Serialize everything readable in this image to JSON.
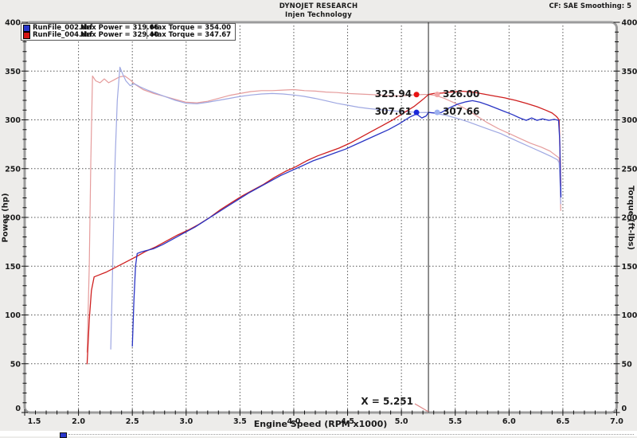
{
  "header": {
    "title": "DYNOJET RESEARCH",
    "subtitle": "Injen Technology",
    "correction": "CF: SAE  Smoothing: 5"
  },
  "legend": {
    "runs": [
      {
        "file": "RunFile_002.drf",
        "power": "Max Power = 319.66",
        "torque": "Max Torque = 354.00",
        "color": "#2836cc"
      },
      {
        "file": "RunFile_004.drf",
        "power": "Max Power = 329.40",
        "torque": "Max Torque = 347.67",
        "color": "#d41414"
      }
    ]
  },
  "cursor": {
    "x": 5.251,
    "label": "X = 5.251",
    "pointer_color": "#dd8a8a",
    "readouts": [
      {
        "label": "325.94",
        "value": 325.94,
        "dot": "#e81212",
        "placement": "left"
      },
      {
        "label": "326.00",
        "value": 326.0,
        "dot": "#f2a7a7",
        "placement": "right"
      },
      {
        "label": "307.61",
        "value": 307.61,
        "dot": "#1a28d8",
        "placement": "left"
      },
      {
        "label": "307.66",
        "value": 307.66,
        "dot": "#9db1ef",
        "placement": "right"
      }
    ]
  },
  "chart_data": {
    "type": "line",
    "title": "DYNOJET RESEARCH",
    "subtitle": "Injen Technology",
    "xlabel": "Engine Speed (RPM x1000)",
    "ylabel_left": "Power (hp)",
    "ylabel_right": "Torque (ft-lbs)",
    "x_range": [
      1.5,
      7.0
    ],
    "y_range": [
      0,
      400
    ],
    "x_tick_labels": [
      "1.5",
      "2.0",
      "2.5",
      "3.0",
      "3.5",
      "4.0",
      "4.5",
      "5.0",
      "5.5",
      "6.0",
      "6.5",
      "7.0"
    ],
    "y_tick_labels": [
      "0",
      "50",
      "100",
      "150",
      "200",
      "250",
      "300",
      "350",
      "400"
    ],
    "x_minor_step": 0.1,
    "y_minor_step": 10,
    "grid": true,
    "legend_position": "top-left",
    "series": [
      {
        "name": "RunFile_004.drf Torque",
        "unit": "ft-lbs",
        "color": "#e59c9c",
        "width": 1.2,
        "points": [
          [
            2.08,
            62
          ],
          [
            2.1,
            150
          ],
          [
            2.115,
            260
          ],
          [
            2.13,
            345
          ],
          [
            2.16,
            340
          ],
          [
            2.2,
            338
          ],
          [
            2.24,
            342
          ],
          [
            2.28,
            338
          ],
          [
            2.33,
            341
          ],
          [
            2.38,
            344
          ],
          [
            2.43,
            345
          ],
          [
            2.48,
            341
          ],
          [
            2.53,
            336
          ],
          [
            2.6,
            331
          ],
          [
            2.7,
            327
          ],
          [
            2.8,
            324
          ],
          [
            2.9,
            321
          ],
          [
            3.0,
            318
          ],
          [
            3.1,
            317.5
          ],
          [
            3.2,
            319
          ],
          [
            3.3,
            322
          ],
          [
            3.4,
            325
          ],
          [
            3.5,
            327
          ],
          [
            3.6,
            329
          ],
          [
            3.7,
            330
          ],
          [
            3.8,
            330
          ],
          [
            3.9,
            330.5
          ],
          [
            4.0,
            331
          ],
          [
            4.1,
            330
          ],
          [
            4.2,
            329.5
          ],
          [
            4.3,
            328.5
          ],
          [
            4.4,
            328
          ],
          [
            4.5,
            327
          ],
          [
            4.6,
            326.5
          ],
          [
            4.7,
            326
          ],
          [
            4.8,
            325.5
          ],
          [
            4.9,
            324.5
          ],
          [
            5.0,
            324.5
          ],
          [
            5.1,
            325.5
          ],
          [
            5.2,
            326
          ],
          [
            5.251,
            326
          ],
          [
            5.32,
            325
          ],
          [
            5.4,
            322
          ],
          [
            5.5,
            317
          ],
          [
            5.6,
            311
          ],
          [
            5.7,
            304
          ],
          [
            5.8,
            297
          ],
          [
            5.9,
            291
          ],
          [
            6.0,
            286
          ],
          [
            6.1,
            281
          ],
          [
            6.2,
            276
          ],
          [
            6.3,
            272
          ],
          [
            6.38,
            268
          ],
          [
            6.44,
            263
          ],
          [
            6.465,
            261
          ],
          [
            6.475,
            240
          ],
          [
            6.48,
            207
          ]
        ]
      },
      {
        "name": "RunFile_002.drf Torque",
        "unit": "ft-lbs",
        "color": "#9fa8e2",
        "width": 1.2,
        "points": [
          [
            2.3,
            65
          ],
          [
            2.32,
            160
          ],
          [
            2.34,
            260
          ],
          [
            2.36,
            320
          ],
          [
            2.385,
            354
          ],
          [
            2.41,
            347
          ],
          [
            2.44,
            340
          ],
          [
            2.48,
            335
          ],
          [
            2.52,
            337
          ],
          [
            2.57,
            334
          ],
          [
            2.63,
            331
          ],
          [
            2.7,
            328
          ],
          [
            2.8,
            324
          ],
          [
            2.9,
            320
          ],
          [
            3.0,
            317
          ],
          [
            3.1,
            316.5
          ],
          [
            3.2,
            318
          ],
          [
            3.3,
            320
          ],
          [
            3.4,
            322
          ],
          [
            3.5,
            324
          ],
          [
            3.6,
            325.5
          ],
          [
            3.7,
            326.5
          ],
          [
            3.8,
            327
          ],
          [
            3.9,
            326.5
          ],
          [
            4.0,
            325.5
          ],
          [
            4.1,
            324
          ],
          [
            4.2,
            322
          ],
          [
            4.3,
            319.5
          ],
          [
            4.4,
            317
          ],
          [
            4.5,
            315
          ],
          [
            4.6,
            313
          ],
          [
            4.7,
            311.5
          ],
          [
            4.8,
            310.5
          ],
          [
            4.9,
            309.5
          ],
          [
            5.0,
            308.5
          ],
          [
            5.1,
            308
          ],
          [
            5.18,
            307.5
          ],
          [
            5.251,
            307.66
          ],
          [
            5.33,
            306.5
          ],
          [
            5.42,
            304.5
          ],
          [
            5.52,
            301.5
          ],
          [
            5.62,
            298
          ],
          [
            5.72,
            294
          ],
          [
            5.82,
            290
          ],
          [
            5.92,
            286
          ],
          [
            6.02,
            281
          ],
          [
            6.12,
            276
          ],
          [
            6.22,
            271
          ],
          [
            6.32,
            266
          ],
          [
            6.4,
            262
          ],
          [
            6.45,
            259
          ],
          [
            6.465,
            256
          ],
          [
            6.475,
            232
          ],
          [
            6.48,
            214
          ]
        ]
      },
      {
        "name": "RunFile_004.drf Power",
        "unit": "hp",
        "color": "#cf1f1f",
        "width": 1.3,
        "points": [
          [
            2.08,
            50
          ],
          [
            2.1,
            95
          ],
          [
            2.12,
            125
          ],
          [
            2.145,
            139
          ],
          [
            2.19,
            141
          ],
          [
            2.26,
            144
          ],
          [
            2.33,
            148
          ],
          [
            2.4,
            152
          ],
          [
            2.47,
            156
          ],
          [
            2.54,
            160
          ],
          [
            2.62,
            165
          ],
          [
            2.72,
            170
          ],
          [
            2.82,
            176
          ],
          [
            2.92,
            182
          ],
          [
            3.02,
            187
          ],
          [
            3.12,
            193
          ],
          [
            3.22,
            200
          ],
          [
            3.32,
            208
          ],
          [
            3.42,
            215
          ],
          [
            3.52,
            222
          ],
          [
            3.62,
            228
          ],
          [
            3.72,
            234
          ],
          [
            3.82,
            241
          ],
          [
            3.92,
            247
          ],
          [
            4.02,
            252
          ],
          [
            4.12,
            258
          ],
          [
            4.22,
            263
          ],
          [
            4.32,
            267
          ],
          [
            4.42,
            271
          ],
          [
            4.52,
            276
          ],
          [
            4.62,
            282
          ],
          [
            4.72,
            288
          ],
          [
            4.82,
            294
          ],
          [
            4.92,
            300
          ],
          [
            5.02,
            307
          ],
          [
            5.12,
            314
          ],
          [
            5.2,
            321
          ],
          [
            5.251,
            325.94
          ],
          [
            5.3,
            327
          ],
          [
            5.38,
            327.5
          ],
          [
            5.46,
            328.5
          ],
          [
            5.56,
            329.4
          ],
          [
            5.66,
            328.5
          ],
          [
            5.76,
            326.5
          ],
          [
            5.86,
            324.5
          ],
          [
            5.96,
            322.5
          ],
          [
            6.06,
            320
          ],
          [
            6.16,
            317
          ],
          [
            6.26,
            313.5
          ],
          [
            6.34,
            310
          ],
          [
            6.4,
            307
          ],
          [
            6.44,
            303.5
          ],
          [
            6.465,
            300
          ],
          [
            6.475,
            262
          ],
          [
            6.48,
            232
          ]
        ]
      },
      {
        "name": "RunFile_002.drf Power",
        "unit": "hp",
        "color": "#2a35c4",
        "width": 1.3,
        "points": [
          [
            2.5,
            68
          ],
          [
            2.515,
            115
          ],
          [
            2.53,
            150
          ],
          [
            2.545,
            163
          ],
          [
            2.58,
            164.5
          ],
          [
            2.63,
            166
          ],
          [
            2.7,
            168
          ],
          [
            2.78,
            172
          ],
          [
            2.88,
            178
          ],
          [
            2.98,
            184
          ],
          [
            3.08,
            190
          ],
          [
            3.18,
            197
          ],
          [
            3.28,
            204
          ],
          [
            3.38,
            211
          ],
          [
            3.48,
            218
          ],
          [
            3.58,
            225
          ],
          [
            3.68,
            231
          ],
          [
            3.78,
            237
          ],
          [
            3.88,
            243
          ],
          [
            3.98,
            248
          ],
          [
            4.08,
            253
          ],
          [
            4.18,
            258
          ],
          [
            4.28,
            262
          ],
          [
            4.38,
            266
          ],
          [
            4.48,
            270
          ],
          [
            4.58,
            275
          ],
          [
            4.68,
            280
          ],
          [
            4.78,
            285
          ],
          [
            4.88,
            290
          ],
          [
            4.98,
            296
          ],
          [
            5.08,
            303
          ],
          [
            5.14,
            306
          ],
          [
            5.19,
            302
          ],
          [
            5.23,
            304
          ],
          [
            5.251,
            307.61
          ],
          [
            5.31,
            307
          ],
          [
            5.37,
            307.5
          ],
          [
            5.44,
            312
          ],
          [
            5.52,
            316
          ],
          [
            5.6,
            318.5
          ],
          [
            5.66,
            319.66
          ],
          [
            5.73,
            318
          ],
          [
            5.81,
            315
          ],
          [
            5.89,
            311.5
          ],
          [
            5.96,
            308.5
          ],
          [
            6.03,
            305.5
          ],
          [
            6.1,
            302
          ],
          [
            6.16,
            299.5
          ],
          [
            6.21,
            302
          ],
          [
            6.26,
            299.5
          ],
          [
            6.31,
            301
          ],
          [
            6.37,
            299.5
          ],
          [
            6.42,
            300.5
          ],
          [
            6.46,
            299.5
          ],
          [
            6.47,
            280
          ],
          [
            6.478,
            240
          ],
          [
            6.482,
            221
          ]
        ]
      }
    ]
  },
  "colors": {
    "frame": "#9c9c9c",
    "grid": "#555555",
    "tick": "#111111",
    "cursor": "#222222",
    "plot_bg": "#ffffff",
    "outer_bg": "#edecea"
  },
  "bottom_strip": {
    "swatch_color": "#2836cc"
  }
}
